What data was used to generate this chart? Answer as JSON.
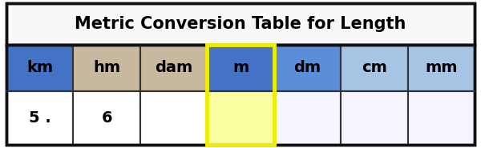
{
  "title": "Metric Conversion Table for Length",
  "headers": [
    "km",
    "hm",
    "dam",
    "m",
    "dm",
    "cm",
    "mm"
  ],
  "data_row": [
    "5 .",
    "6",
    "",
    "",
    "",
    "",
    ""
  ],
  "header_colors": [
    "#4472C4",
    "#C9B8A0",
    "#C9B8A0",
    "#4472C4",
    "#5B8DD9",
    "#A8C4E5",
    "#A8C4E5"
  ],
  "data_colors": [
    "#FFFFFF",
    "#FFFFFF",
    "#FFFFFF",
    "#FAFFA0",
    "#F5F5FF",
    "#F5F5FF",
    "#F5F5FF"
  ],
  "highlight_col": 3,
  "highlight_border_color": "#EEEE00",
  "title_bg": "#F8F8F8",
  "table_border_color": "#111111",
  "cell_border_color": "#333333",
  "title_fontsize": 15,
  "cell_fontsize": 14,
  "fig_width": 6.0,
  "fig_height": 1.85,
  "dpi": 100
}
